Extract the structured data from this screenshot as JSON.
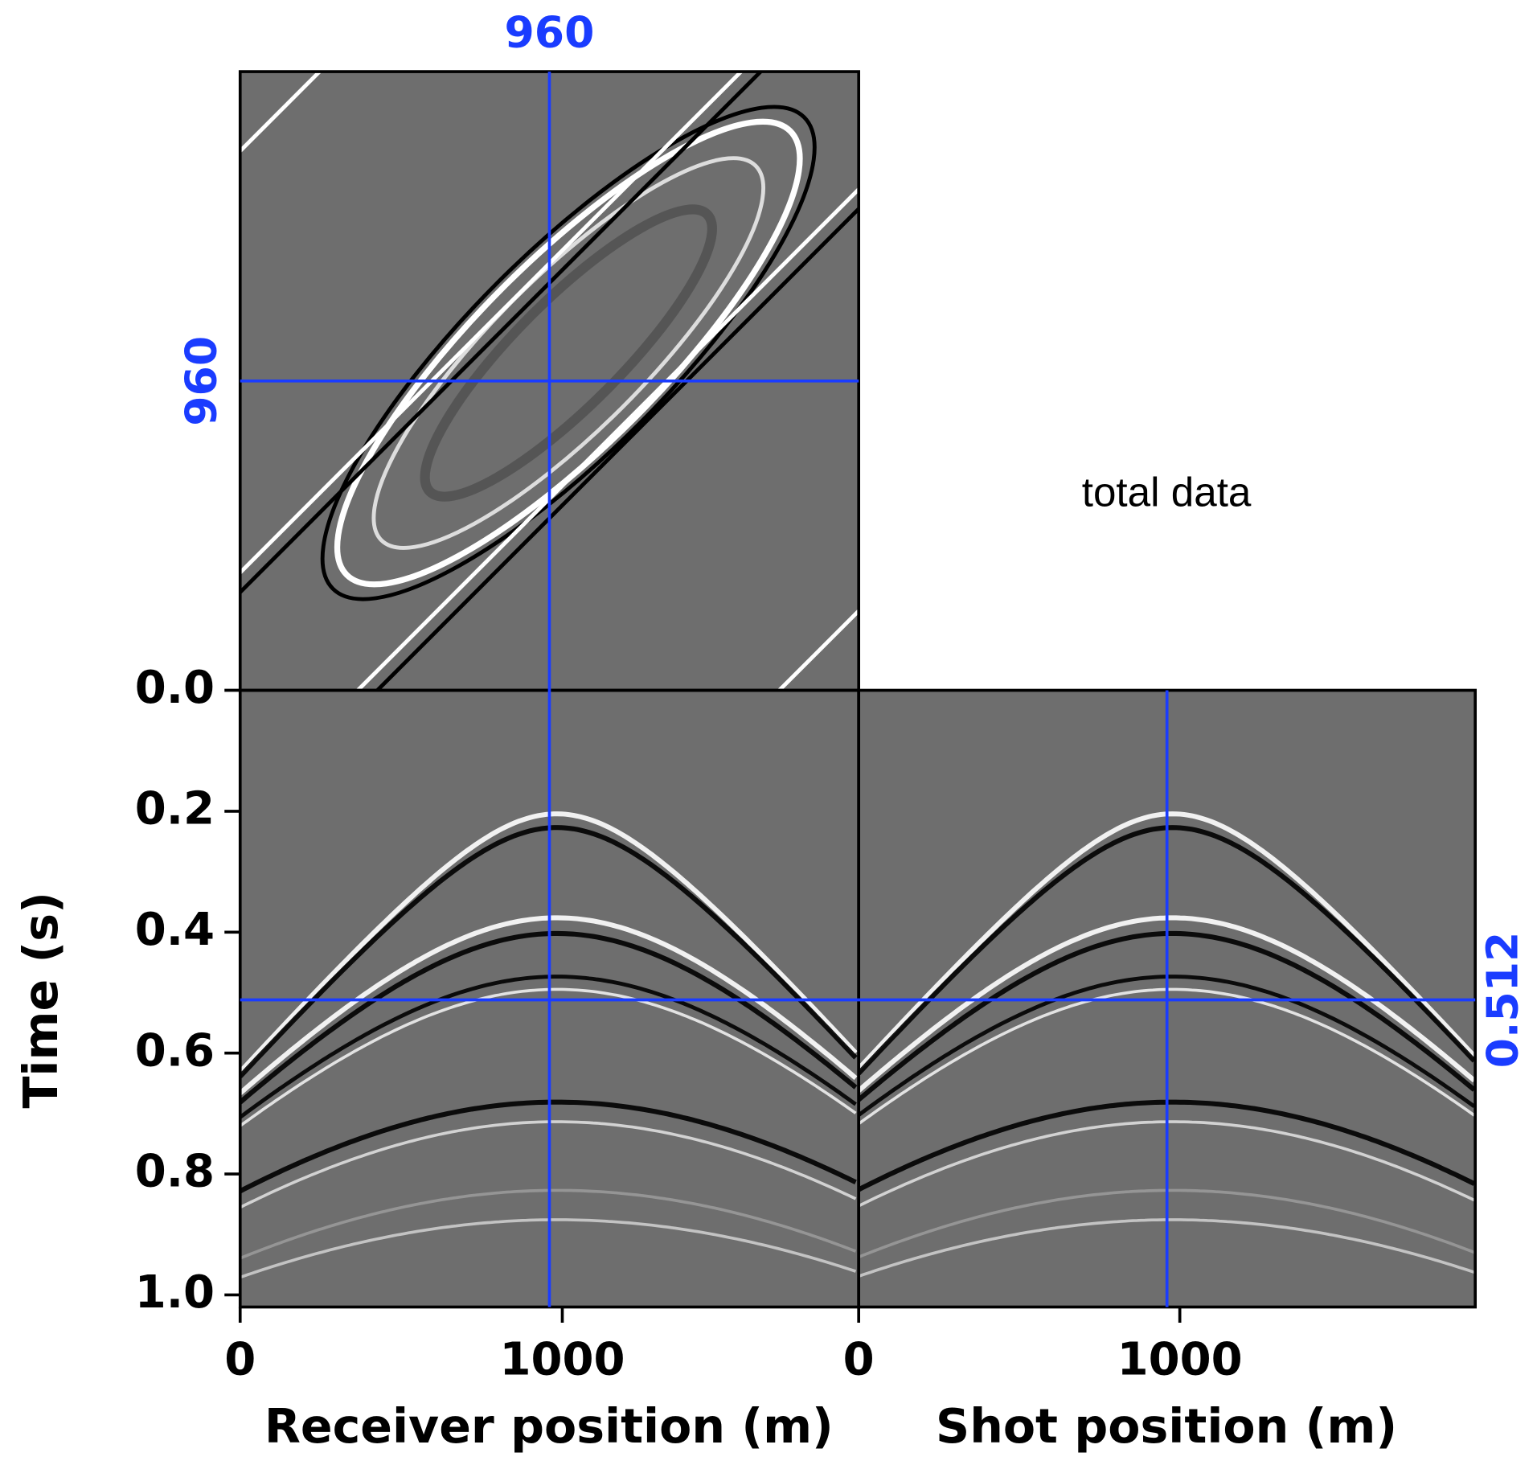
{
  "chart_data": {
    "type": "cube",
    "annotation": "total data",
    "y_label": "Time (s)",
    "ylim": [
      0,
      1.02
    ],
    "yticks": [
      {
        "value": 0,
        "label": "0.0"
      },
      0.2,
      0.4,
      0.6,
      0.8,
      {
        "value": 1,
        "label": "1.0"
      }
    ],
    "x_label": "Receiver position (m)",
    "xlim": [
      0,
      1920
    ],
    "xticks": [
      0,
      1000
    ],
    "x2_label": "Shot position (m)",
    "x2lim": [
      0,
      1920
    ],
    "x2ticks": [
      0,
      1000
    ],
    "slice": {
      "receiver": 960,
      "shot": 960,
      "time": 0.512,
      "color": "#1a3cff"
    }
  }
}
